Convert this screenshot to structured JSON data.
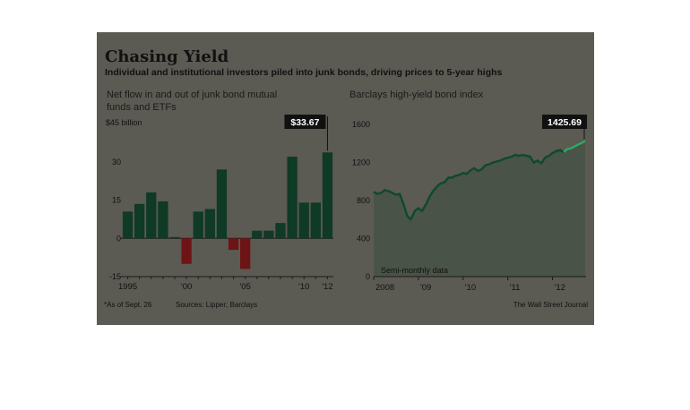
{
  "header": {
    "title": "Chasing Yield",
    "subtitle": "Individual and institutional investors piled into junk bonds, driving prices to 5-year highs"
  },
  "footer": {
    "note": "*As of Sept. 26",
    "sources": "Sources: Lipper; Barclays",
    "credit": "The Wall Street Journal"
  },
  "colors": {
    "background": "#5b5a53",
    "positive_bar": "#0f3a25",
    "negative_bar": "#6e1416",
    "index_line": "#0d4a2a",
    "index_area": "#4a5347",
    "index_highlight": "#2ea866",
    "callout_box": "#111111"
  },
  "chart_data": [
    {
      "type": "bar",
      "title": "Net flow in and out of junk bond mutual funds and ETFs",
      "title_lines": [
        "Net flow in and out of junk bond mutual",
        "funds and ETFs"
      ],
      "unit_label": "$45 billion",
      "categories": [
        "1995",
        "1996",
        "1997",
        "1998",
        "1999",
        "2000",
        "2001",
        "2002",
        "2003",
        "2004",
        "2005",
        "2006",
        "2007",
        "2008",
        "2009",
        "2010",
        "2011",
        "2012"
      ],
      "values": [
        10.5,
        13.5,
        18,
        14.5,
        0.5,
        -10,
        10.5,
        11.5,
        27,
        -4.5,
        -12,
        3,
        3,
        6,
        32,
        14,
        14,
        33.67
      ],
      "ylim": [
        -15,
        45
      ],
      "yticks": [
        -15,
        0,
        15,
        30
      ],
      "xtick_labels": [
        {
          "category": "1995",
          "label": "1995"
        },
        {
          "category": "2000",
          "label": "'00"
        },
        {
          "category": "2005",
          "label": "'05"
        },
        {
          "category": "2010",
          "label": "'10"
        },
        {
          "category": "2012",
          "label": "'12"
        }
      ],
      "callout": {
        "category": "2012",
        "label": "$33.67"
      },
      "grid": false
    },
    {
      "type": "area",
      "title": "Barclays high-yield bond index",
      "note": "Semi-monthly data",
      "ylim": [
        0,
        1600
      ],
      "yticks": [
        0,
        400,
        800,
        1200,
        1600
      ],
      "xlim": [
        2008.0,
        2012.75
      ],
      "xtick_labels": [
        {
          "x": 2008.0,
          "label": "2008"
        },
        {
          "x": 2009.0,
          "label": "'09"
        },
        {
          "x": 2010.0,
          "label": "'10"
        },
        {
          "x": 2011.0,
          "label": "'11"
        },
        {
          "x": 2012.0,
          "label": "'12"
        }
      ],
      "x": [
        2008.0,
        2008.08,
        2008.17,
        2008.25,
        2008.33,
        2008.42,
        2008.5,
        2008.58,
        2008.67,
        2008.75,
        2008.83,
        2008.92,
        2009.0,
        2009.08,
        2009.17,
        2009.25,
        2009.33,
        2009.42,
        2009.5,
        2009.58,
        2009.67,
        2009.75,
        2009.83,
        2009.92,
        2010.0,
        2010.08,
        2010.17,
        2010.25,
        2010.33,
        2010.42,
        2010.5,
        2010.58,
        2010.67,
        2010.75,
        2010.83,
        2010.92,
        2011.0,
        2011.08,
        2011.17,
        2011.25,
        2011.33,
        2011.42,
        2011.5,
        2011.58,
        2011.67,
        2011.75,
        2011.83,
        2011.92,
        2012.0,
        2012.08,
        2012.17,
        2012.25,
        2012.33,
        2012.42,
        2012.5,
        2012.58,
        2012.67,
        2012.73
      ],
      "y": [
        890,
        870,
        880,
        910,
        900,
        880,
        860,
        870,
        760,
        640,
        600,
        690,
        720,
        690,
        760,
        840,
        900,
        950,
        980,
        990,
        1040,
        1040,
        1060,
        1070,
        1090,
        1080,
        1120,
        1140,
        1110,
        1130,
        1170,
        1180,
        1200,
        1210,
        1220,
        1240,
        1250,
        1260,
        1280,
        1270,
        1280,
        1270,
        1260,
        1200,
        1220,
        1190,
        1250,
        1270,
        1300,
        1320,
        1330,
        1310,
        1340,
        1350,
        1370,
        1390,
        1410,
        1425.69
      ],
      "callout": {
        "label": "1425.69"
      },
      "grid": false
    }
  ]
}
